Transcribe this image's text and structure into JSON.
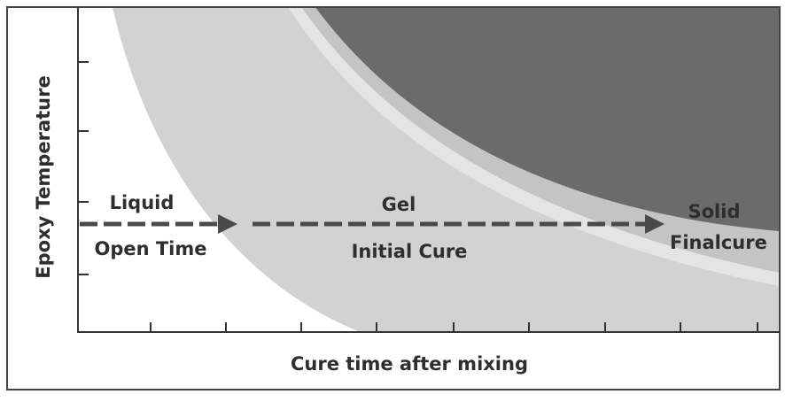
{
  "y_axis_label": "Epoxy Temperature",
  "x_axis_label": "Cure time after mixing",
  "stages": [
    {
      "name": "Liquid",
      "label": "Open Time"
    },
    {
      "name": "Gel",
      "label": "Initial Cure"
    },
    {
      "name": "Solid",
      "label": "Finalcure"
    }
  ]
}
